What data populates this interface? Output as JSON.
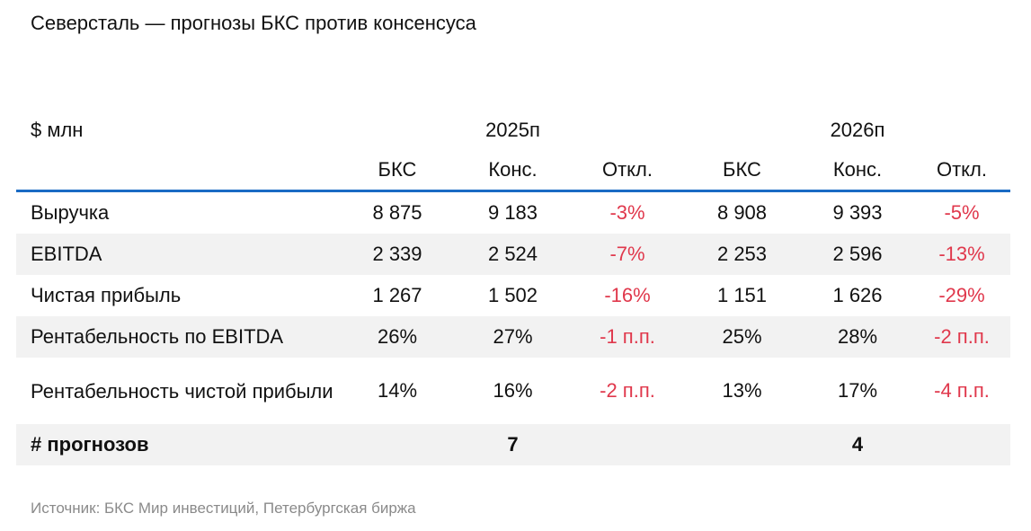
{
  "title": "Северсталь — прогнозы БКС против консенсуса",
  "table": {
    "unit_label": "$ млн",
    "years": [
      "2025п",
      "2026п"
    ],
    "subheaders": [
      "БКС",
      "Конс.",
      "Откл.",
      "БКС",
      "Конс.",
      "Откл."
    ],
    "rows": [
      {
        "label": "Выручка",
        "values": [
          "8 875",
          "9 183",
          "-3%",
          "8 908",
          "9 393",
          "-5%"
        ]
      },
      {
        "label": "EBITDA",
        "values": [
          "2 339",
          "2 524",
          "-7%",
          "2 253",
          "2 596",
          "-13%"
        ]
      },
      {
        "label": "Чистая прибыль",
        "values": [
          "1 267",
          "1 502",
          "-16%",
          "1 151",
          "1 626",
          "-29%"
        ]
      },
      {
        "label": "Рентабельность по EBITDA",
        "values": [
          "26%",
          "27%",
          "-1 п.п.",
          "25%",
          "28%",
          "-2 п.п."
        ]
      },
      {
        "label": "Рентабельность чистой прибыли",
        "values": [
          "14%",
          "16%",
          "-2 п.п.",
          "13%",
          "17%",
          "-4 п.п."
        ]
      }
    ],
    "total": {
      "label": "# прогнозов",
      "values": [
        "7",
        "4"
      ]
    }
  },
  "source": "Источник: БКС Мир инвестиций, Петербургская биржа",
  "colors": {
    "accent_line": "#1a6bc4",
    "negative": "#e0384c",
    "row_shade": "#f2f2f2",
    "source_text": "#8a8a8a"
  }
}
